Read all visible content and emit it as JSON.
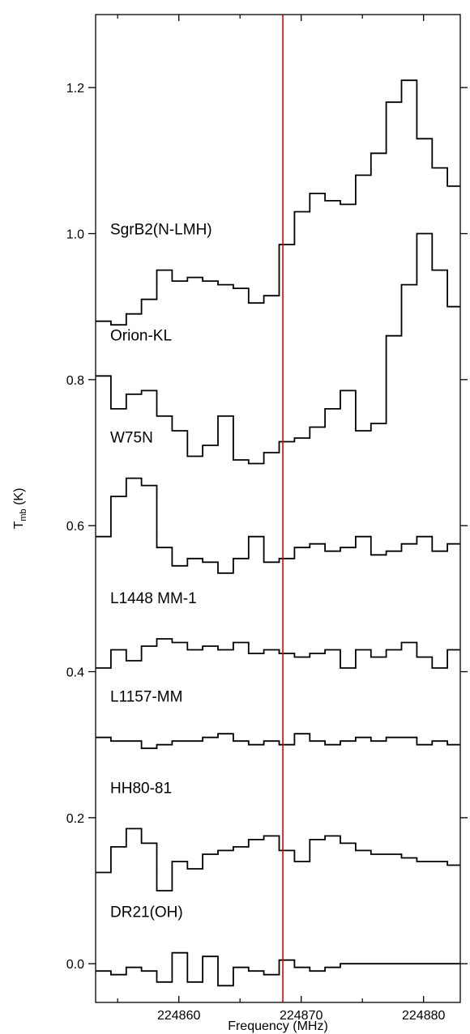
{
  "chart_data": {
    "type": "line",
    "xlabel": "Frequency (MHz)",
    "ylabel": "T",
    "ylabel_sub": "mb",
    "ylabel_unit": " (K)",
    "xlim": [
      224853.2,
      224883.0
    ],
    "ylim": [
      -0.053,
      1.3
    ],
    "x_ticks": [
      224860,
      224870,
      224880
    ],
    "y_ticks": [
      0.0,
      0.2,
      0.4,
      0.6,
      0.8,
      1.0,
      1.2
    ],
    "x_tick_labels": [
      "224860",
      "224870",
      "224880"
    ],
    "y_tick_labels": [
      "0.0",
      "0.2",
      "0.4",
      "0.6",
      "0.8",
      "1.0",
      "1.2"
    ],
    "grid": false,
    "step_plot": true,
    "line_color": "#000000",
    "marker_line": {
      "x": 224868.5,
      "color": "#dd0000"
    },
    "bin_edges": [
      224853.2,
      224854.45,
      224855.7,
      224856.95,
      224858.2,
      224859.45,
      224860.7,
      224861.95,
      224863.2,
      224864.45,
      224865.7,
      224866.95,
      224868.2,
      224869.45,
      224870.7,
      224871.95,
      224873.2,
      224874.45,
      224875.7,
      224876.95,
      224878.2,
      224879.45,
      224880.7,
      224881.95,
      224883.0
    ],
    "series": [
      {
        "name": "SgrB2(N-LMH)",
        "values": [
          0.88,
          0.875,
          0.89,
          0.91,
          0.95,
          0.935,
          0.94,
          0.935,
          0.93,
          0.925,
          0.905,
          0.915,
          0.985,
          1.03,
          1.055,
          1.045,
          1.04,
          1.08,
          1.11,
          1.18,
          1.21,
          1.13,
          1.09,
          1.065
        ]
      },
      {
        "name": "Orion-KL",
        "values": [
          0.805,
          0.76,
          0.78,
          0.785,
          0.75,
          0.73,
          0.695,
          0.71,
          0.75,
          0.69,
          0.685,
          0.7,
          0.715,
          0.72,
          0.735,
          0.76,
          0.785,
          0.73,
          0.74,
          0.86,
          0.93,
          1.0,
          0.95,
          0.9
        ]
      },
      {
        "name": "W75N",
        "values": [
          0.585,
          0.64,
          0.665,
          0.655,
          0.57,
          0.545,
          0.555,
          0.55,
          0.535,
          0.555,
          0.585,
          0.55,
          0.555,
          0.57,
          0.575,
          0.565,
          0.57,
          0.585,
          0.56,
          0.565,
          0.575,
          0.585,
          0.565,
          0.575
        ]
      },
      {
        "name": "L1448 MM-1",
        "values": [
          0.405,
          0.43,
          0.415,
          0.435,
          0.445,
          0.44,
          0.43,
          0.435,
          0.43,
          0.44,
          0.425,
          0.43,
          0.425,
          0.42,
          0.425,
          0.43,
          0.405,
          0.43,
          0.42,
          0.43,
          0.44,
          0.42,
          0.405,
          0.43
        ]
      },
      {
        "name": "L1157-MM",
        "values": [
          0.31,
          0.305,
          0.305,
          0.295,
          0.3,
          0.305,
          0.305,
          0.31,
          0.315,
          0.305,
          0.3,
          0.305,
          0.3,
          0.315,
          0.305,
          0.3,
          0.305,
          0.31,
          0.305,
          0.31,
          0.31,
          0.3,
          0.305,
          0.3
        ]
      },
      {
        "name": "HH80-81",
        "values": [
          0.125,
          0.16,
          0.185,
          0.165,
          0.1,
          0.14,
          0.13,
          0.15,
          0.155,
          0.16,
          0.17,
          0.175,
          0.155,
          0.14,
          0.17,
          0.175,
          0.165,
          0.155,
          0.15,
          0.15,
          0.145,
          0.14,
          0.14,
          0.135
        ]
      },
      {
        "name": "DR21(OH)",
        "values": [
          -0.01,
          -0.015,
          -0.005,
          -0.01,
          -0.025,
          0.015,
          -0.025,
          0.01,
          -0.03,
          -0.005,
          -0.01,
          -0.015,
          0.005,
          -0.005,
          -0.01,
          -0.005,
          0.0,
          0.0,
          0.0,
          0.0,
          0.0,
          0.0,
          0.0,
          0.0
        ]
      }
    ]
  }
}
